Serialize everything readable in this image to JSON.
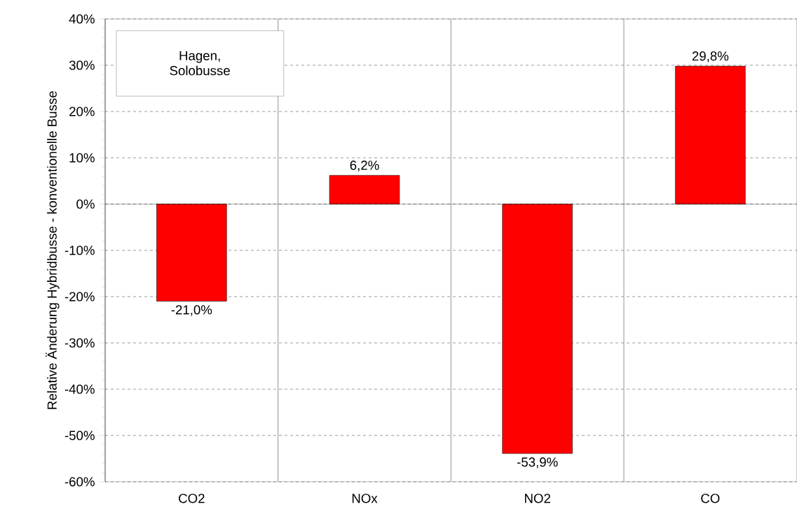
{
  "chart_data": {
    "type": "bar",
    "ylabel": "Relative Änderung Hybridbusse - konventionelle Busse",
    "categories": [
      "CO2",
      "NOx",
      "NO2",
      "CO"
    ],
    "values": [
      -21.0,
      6.2,
      -53.9,
      29.8
    ],
    "value_labels": [
      "-21,0%",
      "6,2%",
      "-53,9%",
      "29,8%"
    ],
    "color": "#ff0000",
    "ylim": [
      -60,
      40
    ],
    "yticks": [
      {
        "value": -60,
        "label": "-60%"
      },
      {
        "value": -50,
        "label": "-50%"
      },
      {
        "value": -40,
        "label": "-40%"
      },
      {
        "value": -30,
        "label": "-30%"
      },
      {
        "value": -20,
        "label": "-20%"
      },
      {
        "value": -10,
        "label": "-10%"
      },
      {
        "value": 0,
        "label": "0%"
      },
      {
        "value": 10,
        "label": "10%"
      },
      {
        "value": 20,
        "label": "20%"
      },
      {
        "value": 30,
        "label": "30%"
      },
      {
        "value": 40,
        "label": "40%"
      }
    ],
    "grid": true,
    "annotations": [
      "Hagen, Solobusse"
    ]
  }
}
